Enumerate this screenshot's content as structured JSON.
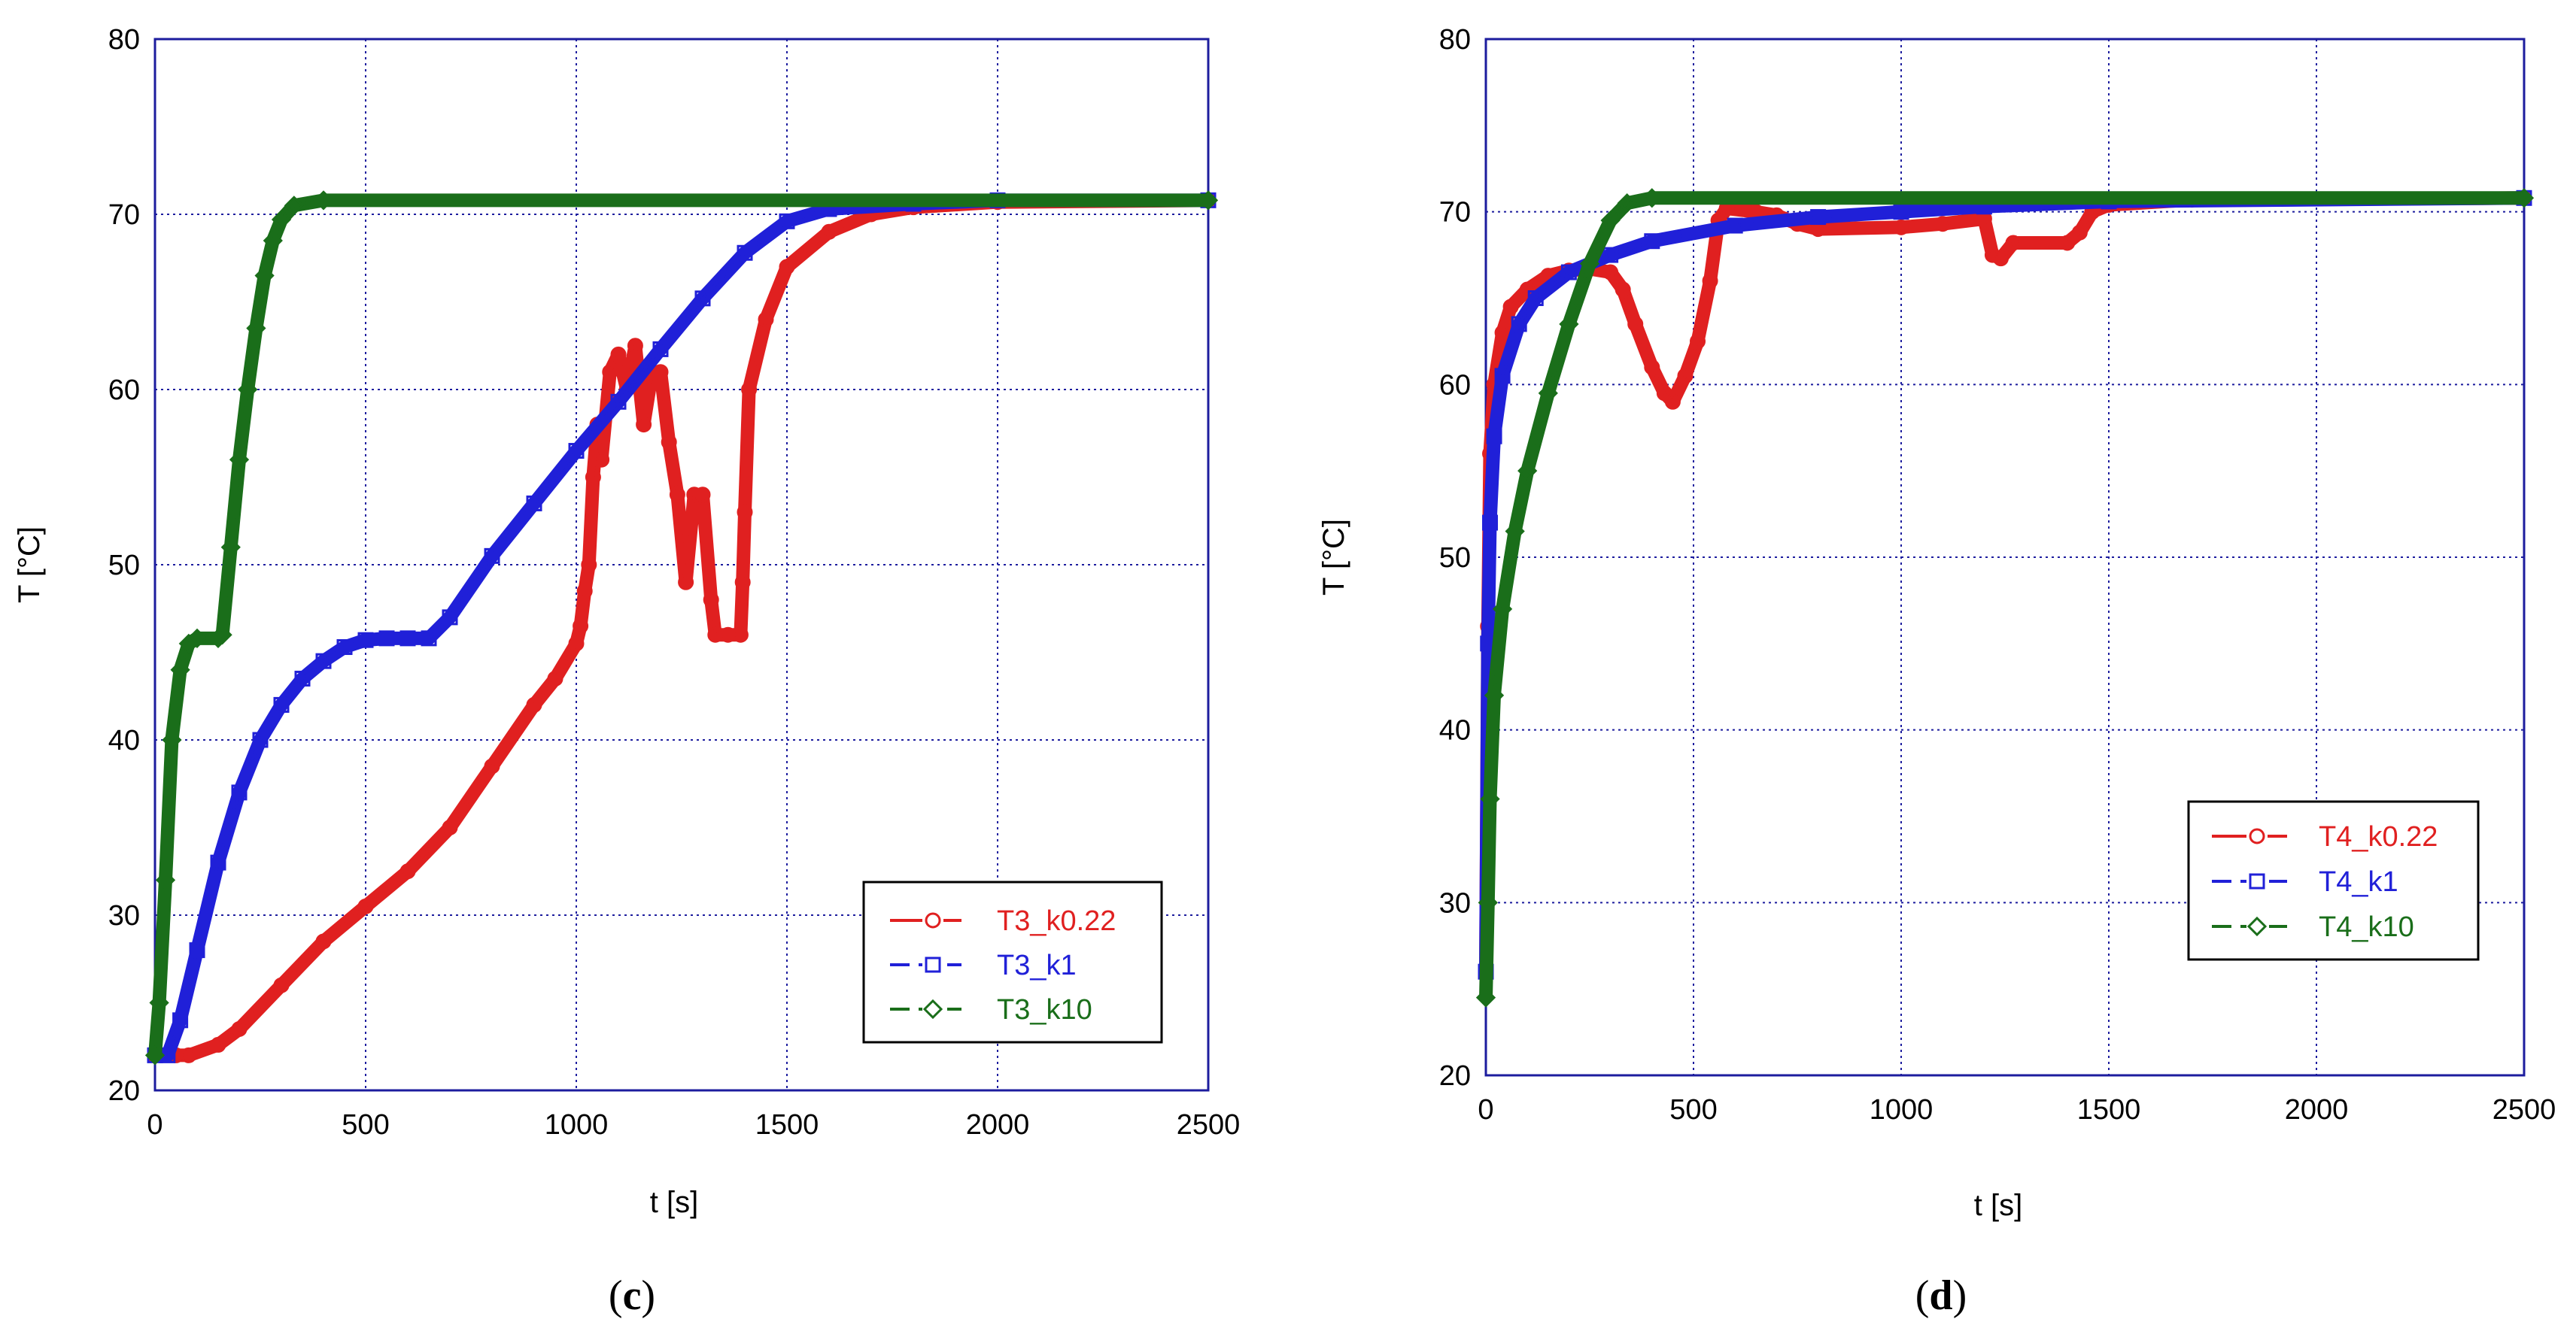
{
  "chart_data": [
    {
      "type": "line",
      "panel_label": "(c)",
      "panel_letter": "c",
      "xlabel": "t [s]",
      "ylabel": "T [°C]",
      "xlim": [
        0,
        2500
      ],
      "ylim": [
        20,
        80
      ],
      "xticks": [
        0,
        500,
        1000,
        1500,
        2000,
        2500
      ],
      "yticks": [
        20,
        30,
        40,
        50,
        60,
        70,
        80
      ],
      "grid": true,
      "legend_position": "bottom-right",
      "series": [
        {
          "name": "T3_k0.22",
          "color": "#e02020",
          "marker": "circle",
          "line_style": "solid",
          "points": [
            [
              0,
              22
            ],
            [
              50,
              22
            ],
            [
              80,
              22
            ],
            [
              150,
              22.6
            ],
            [
              200,
              23.5
            ],
            [
              300,
              26
            ],
            [
              400,
              28.5
            ],
            [
              500,
              30.5
            ],
            [
              600,
              32.5
            ],
            [
              700,
              35
            ],
            [
              800,
              38.5
            ],
            [
              900,
              42
            ],
            [
              950,
              43.5
            ],
            [
              1000,
              45.5
            ],
            [
              1010,
              46.5
            ],
            [
              1020,
              48.5
            ],
            [
              1030,
              50
            ],
            [
              1040,
              55
            ],
            [
              1050,
              58
            ],
            [
              1060,
              56
            ],
            [
              1080,
              61
            ],
            [
              1100,
              62
            ],
            [
              1120,
              60
            ],
            [
              1140,
              62.5
            ],
            [
              1160,
              58
            ],
            [
              1180,
              61
            ],
            [
              1200,
              61
            ],
            [
              1220,
              57
            ],
            [
              1240,
              54
            ],
            [
              1260,
              49
            ],
            [
              1280,
              54
            ],
            [
              1300,
              54
            ],
            [
              1320,
              48
            ],
            [
              1330,
              46
            ],
            [
              1360,
              46
            ],
            [
              1390,
              46
            ],
            [
              1395,
              49
            ],
            [
              1400,
              53
            ],
            [
              1410,
              60
            ],
            [
              1450,
              64
            ],
            [
              1500,
              67
            ],
            [
              1600,
              69
            ],
            [
              1700,
              70
            ],
            [
              1800,
              70.4
            ],
            [
              2000,
              70.7
            ],
            [
              2500,
              70.8
            ]
          ]
        },
        {
          "name": "T3_k1",
          "color": "#2020d8",
          "marker": "square",
          "line_style": "dashed",
          "points": [
            [
              0,
              22
            ],
            [
              30,
              22
            ],
            [
              60,
              24
            ],
            [
              100,
              28
            ],
            [
              150,
              33
            ],
            [
              200,
              37
            ],
            [
              250,
              40
            ],
            [
              300,
              42
            ],
            [
              350,
              43.5
            ],
            [
              400,
              44.5
            ],
            [
              450,
              45.3
            ],
            [
              500,
              45.7
            ],
            [
              550,
              45.8
            ],
            [
              600,
              45.8
            ],
            [
              650,
              45.8
            ],
            [
              700,
              47
            ],
            [
              800,
              50.5
            ],
            [
              900,
              53.5
            ],
            [
              1000,
              56.5
            ],
            [
              1100,
              59.3
            ],
            [
              1200,
              62.3
            ],
            [
              1300,
              65.2
            ],
            [
              1400,
              67.8
            ],
            [
              1500,
              69.6
            ],
            [
              1600,
              70.3
            ],
            [
              1800,
              70.6
            ],
            [
              2000,
              70.8
            ],
            [
              2500,
              70.8
            ]
          ]
        },
        {
          "name": "T3_k10",
          "color": "#1a6e1a",
          "marker": "diamond",
          "line_style": "dashed",
          "points": [
            [
              0,
              22
            ],
            [
              10,
              25
            ],
            [
              25,
              32
            ],
            [
              40,
              40
            ],
            [
              60,
              44
            ],
            [
              80,
              45.5
            ],
            [
              100,
              45.8
            ],
            [
              150,
              45.8
            ],
            [
              160,
              46
            ],
            [
              180,
              51
            ],
            [
              200,
              56
            ],
            [
              220,
              60
            ],
            [
              240,
              63.5
            ],
            [
              260,
              66.5
            ],
            [
              280,
              68.5
            ],
            [
              300,
              69.7
            ],
            [
              330,
              70.5
            ],
            [
              400,
              70.8
            ],
            [
              2500,
              70.8
            ]
          ]
        }
      ]
    },
    {
      "type": "line",
      "panel_label": "(d)",
      "panel_letter": "d",
      "xlabel": "t [s]",
      "ylabel": "T [°C]",
      "xlim": [
        0,
        2500
      ],
      "ylim": [
        20,
        80
      ],
      "xticks": [
        0,
        500,
        1000,
        1500,
        2000,
        2500
      ],
      "yticks": [
        20,
        30,
        40,
        50,
        60,
        70,
        80
      ],
      "grid": true,
      "legend_position": "center-right",
      "series": [
        {
          "name": "T4_k0.22",
          "color": "#e02020",
          "marker": "circle",
          "line_style": "solid",
          "points": [
            [
              0,
              26
            ],
            [
              5,
              46
            ],
            [
              10,
              56
            ],
            [
              20,
              60
            ],
            [
              40,
              63
            ],
            [
              60,
              64.5
            ],
            [
              100,
              65.5
            ],
            [
              150,
              66.3
            ],
            [
              200,
              66.6
            ],
            [
              250,
              66.7
            ],
            [
              300,
              66.5
            ],
            [
              330,
              65.5
            ],
            [
              360,
              63.5
            ],
            [
              400,
              61
            ],
            [
              430,
              59.5
            ],
            [
              450,
              59
            ],
            [
              480,
              60.5
            ],
            [
              510,
              62.5
            ],
            [
              540,
              66
            ],
            [
              560,
              69.5
            ],
            [
              580,
              70.2
            ],
            [
              650,
              70
            ],
            [
              700,
              69.8
            ],
            [
              750,
              69.3
            ],
            [
              800,
              69
            ],
            [
              1000,
              69.1
            ],
            [
              1100,
              69.3
            ],
            [
              1200,
              69.6
            ],
            [
              1220,
              67.5
            ],
            [
              1240,
              67.3
            ],
            [
              1270,
              68.2
            ],
            [
              1400,
              68.2
            ],
            [
              1430,
              68.8
            ],
            [
              1460,
              70
            ],
            [
              1500,
              70.4
            ],
            [
              1700,
              70.7
            ],
            [
              2500,
              70.8
            ]
          ]
        },
        {
          "name": "T4_k1",
          "color": "#2020d8",
          "marker": "square",
          "line_style": "dashed",
          "points": [
            [
              0,
              26
            ],
            [
              5,
              45
            ],
            [
              10,
              52
            ],
            [
              20,
              57
            ],
            [
              40,
              60.5
            ],
            [
              80,
              63.5
            ],
            [
              120,
              65
            ],
            [
              200,
              66.5
            ],
            [
              300,
              67.5
            ],
            [
              400,
              68.3
            ],
            [
              600,
              69.2
            ],
            [
              800,
              69.7
            ],
            [
              1000,
              70
            ],
            [
              1200,
              70.3
            ],
            [
              1500,
              70.6
            ],
            [
              2500,
              70.8
            ]
          ]
        },
        {
          "name": "T4_k10",
          "color": "#1a6e1a",
          "marker": "diamond",
          "line_style": "dashed",
          "points": [
            [
              0,
              24.5
            ],
            [
              5,
              30
            ],
            [
              10,
              36
            ],
            [
              20,
              42
            ],
            [
              40,
              47
            ],
            [
              70,
              51.5
            ],
            [
              100,
              55
            ],
            [
              150,
              59.5
            ],
            [
              200,
              63.5
            ],
            [
              250,
              67
            ],
            [
              300,
              69.5
            ],
            [
              340,
              70.5
            ],
            [
              400,
              70.8
            ],
            [
              2500,
              70.8
            ]
          ]
        }
      ]
    }
  ]
}
